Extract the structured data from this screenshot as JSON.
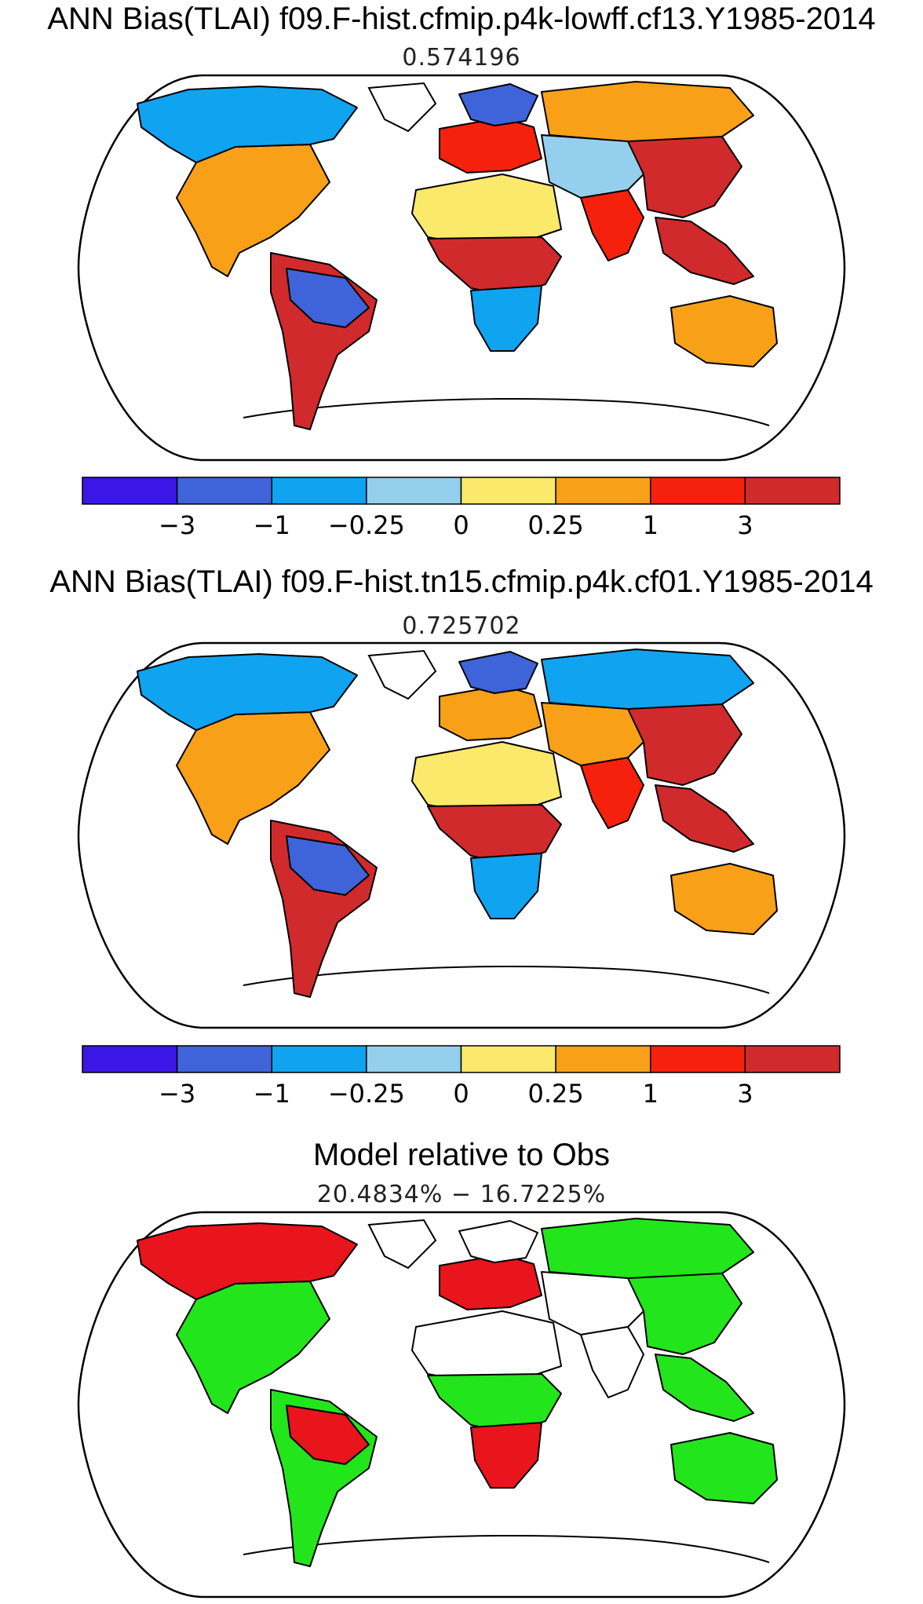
{
  "panels": [
    {
      "title": "ANN Bias(TLAI) f09.F-hist.cfmip.p4k-lowff.cf13.Y1985-2014",
      "subtitle": "0.574196",
      "colorbar": {
        "colors": [
          "#3b17e6",
          "#3f63d9",
          "#10a3f0",
          "#95cfee",
          "#fbe96b",
          "#f9a019",
          "#f5210c",
          "#d12a2c"
        ],
        "ticks": [
          "−3",
          "−1",
          "−0.25",
          "0",
          "0.25",
          "1",
          "3"
        ]
      },
      "regions": [
        {
          "name": "north-america",
          "color": "#f9a019"
        },
        {
          "name": "canada",
          "color": "#10a3f0"
        },
        {
          "name": "south-america",
          "color": "#d12a2c"
        },
        {
          "name": "amazon",
          "color": "#3f63d9"
        },
        {
          "name": "sahara",
          "color": "#fbe96b"
        },
        {
          "name": "central-africa",
          "color": "#d12a2c"
        },
        {
          "name": "southern-africa",
          "color": "#10a3f0"
        },
        {
          "name": "europe",
          "color": "#f5210c"
        },
        {
          "name": "scandinavia",
          "color": "#3f63d9"
        },
        {
          "name": "siberia",
          "color": "#f9a019"
        },
        {
          "name": "central-asia",
          "color": "#95cfee"
        },
        {
          "name": "south-asia",
          "color": "#f5210c"
        },
        {
          "name": "east-asia",
          "color": "#d12a2c"
        },
        {
          "name": "southeast-asia",
          "color": "#d12a2c"
        },
        {
          "name": "australia",
          "color": "#f9a019"
        }
      ]
    },
    {
      "title": "ANN Bias(TLAI) f09.F-hist.tn15.cfmip.p4k.cf01.Y1985-2014",
      "subtitle": "0.725702",
      "colorbar": {
        "colors": [
          "#3b17e6",
          "#3f63d9",
          "#10a3f0",
          "#95cfee",
          "#fbe96b",
          "#f9a019",
          "#f5210c",
          "#d12a2c"
        ],
        "ticks": [
          "−3",
          "−1",
          "−0.25",
          "0",
          "0.25",
          "1",
          "3"
        ]
      },
      "regions": [
        {
          "name": "north-america",
          "color": "#f9a019"
        },
        {
          "name": "canada",
          "color": "#10a3f0"
        },
        {
          "name": "south-america",
          "color": "#d12a2c"
        },
        {
          "name": "amazon",
          "color": "#3f63d9"
        },
        {
          "name": "sahara",
          "color": "#fbe96b"
        },
        {
          "name": "central-africa",
          "color": "#d12a2c"
        },
        {
          "name": "southern-africa",
          "color": "#10a3f0"
        },
        {
          "name": "europe",
          "color": "#f9a019"
        },
        {
          "name": "scandinavia",
          "color": "#3f63d9"
        },
        {
          "name": "siberia",
          "color": "#10a3f0"
        },
        {
          "name": "central-asia",
          "color": "#f9a019"
        },
        {
          "name": "south-asia",
          "color": "#f5210c"
        },
        {
          "name": "east-asia",
          "color": "#d12a2c"
        },
        {
          "name": "southeast-asia",
          "color": "#d12a2c"
        },
        {
          "name": "australia",
          "color": "#f9a019"
        }
      ]
    },
    {
      "title": "Model relative to Obs",
      "subtitle": "20.4834% − 16.7225%",
      "regions": [
        {
          "name": "north-america",
          "color": "#22e51b"
        },
        {
          "name": "canada",
          "color": "#e8151c"
        },
        {
          "name": "south-america",
          "color": "#22e51b"
        },
        {
          "name": "amazon",
          "color": "#e8151c"
        },
        {
          "name": "sahara",
          "color": "#ffffff"
        },
        {
          "name": "central-africa",
          "color": "#22e51b"
        },
        {
          "name": "southern-africa",
          "color": "#e8151c"
        },
        {
          "name": "europe",
          "color": "#e8151c"
        },
        {
          "name": "scandinavia",
          "color": "#ffffff"
        },
        {
          "name": "siberia",
          "color": "#22e51b"
        },
        {
          "name": "central-asia",
          "color": "#ffffff"
        },
        {
          "name": "south-asia",
          "color": "#ffffff"
        },
        {
          "name": "east-asia",
          "color": "#22e51b"
        },
        {
          "name": "southeast-asia",
          "color": "#22e51b"
        },
        {
          "name": "australia",
          "color": "#22e51b"
        }
      ]
    }
  ]
}
